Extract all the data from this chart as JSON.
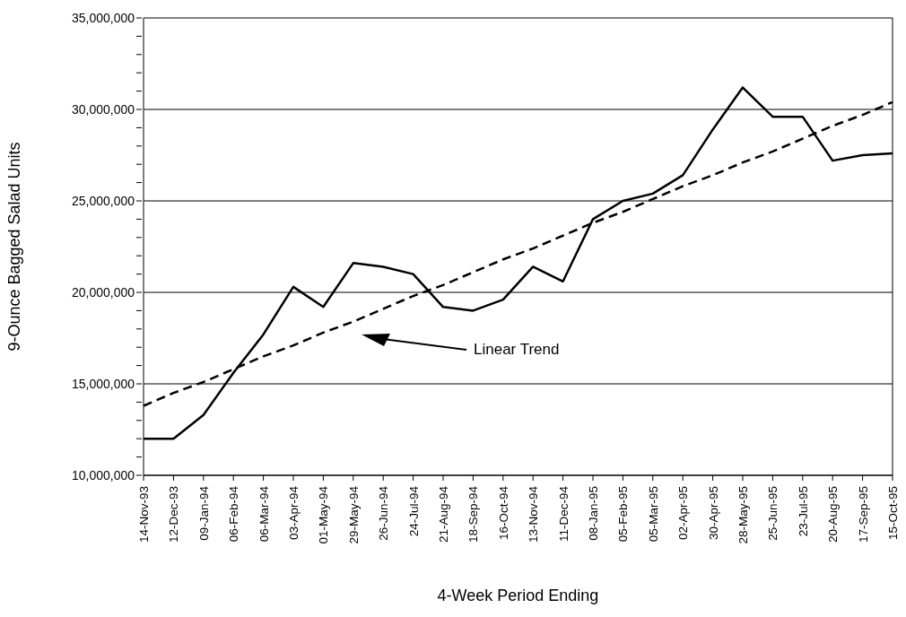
{
  "chart_data": {
    "type": "line",
    "xlabel": "4-Week Period Ending",
    "ylabel": "9-Ounce Bagged Salad Units",
    "categories": [
      "14-Nov-93",
      "12-Dec-93",
      "09-Jan-94",
      "06-Feb-94",
      "06-Mar-94",
      "03-Apr-94",
      "01-May-94",
      "29-May-94",
      "26-Jun-94",
      "24-Jul-94",
      "21-Aug-94",
      "18-Sep-94",
      "16-Oct-94",
      "13-Nov-94",
      "11-Dec-94",
      "08-Jan-95",
      "05-Feb-95",
      "05-Mar-95",
      "02-Apr-95",
      "30-Apr-95",
      "28-May-95",
      "25-Jun-95",
      "23-Jul-95",
      "20-Aug-95",
      "17-Sep-95",
      "15-Oct-95"
    ],
    "series": [
      {
        "color": "#000000",
        "line_style": "solid",
        "values": [
          12000000,
          12000000,
          13300000,
          15600000,
          17700000,
          20300000,
          19200000,
          21600000,
          21400000,
          21000000,
          19200000,
          19000000,
          19600000,
          21400000,
          20600000,
          24000000,
          25000000,
          25400000,
          26400000,
          28900000,
          31200000,
          29600000,
          29600000,
          27200000,
          27500000,
          27600000
        ]
      },
      {
        "type": "line",
        "color": "#000000",
        "line_style": "dashed",
        "values": [
          13800000,
          14500000,
          15100000,
          15800000,
          16500000,
          17100000,
          17800000,
          18400000,
          19100000,
          19800000,
          20400000,
          21100000,
          21800000,
          22400000,
          23100000,
          23800000,
          24400000,
          25100000,
          25800000,
          26400000,
          27100000,
          27700000,
          28400000,
          29100000,
          29700000,
          30400000
        ]
      }
    ],
    "ylim": [
      10000000,
      35000000
    ],
    "yticks": [
      {
        "value": 10000000,
        "label": "10,000,000"
      },
      {
        "value": 11000000,
        "label": null
      },
      {
        "value": 12000000,
        "label": null
      },
      {
        "value": 13000000,
        "label": null
      },
      {
        "value": 14000000,
        "label": null
      },
      {
        "value": 15000000,
        "label": "15,000,000"
      },
      {
        "value": 16000000,
        "label": null
      },
      {
        "value": 17000000,
        "label": null
      },
      {
        "value": 18000000,
        "label": null
      },
      {
        "value": 19000000,
        "label": null
      },
      {
        "value": 20000000,
        "label": "20,000,000"
      },
      {
        "value": 21000000,
        "label": null
      },
      {
        "value": 22000000,
        "label": null
      },
      {
        "value": 23000000,
        "label": null
      },
      {
        "value": 24000000,
        "label": null
      },
      {
        "value": 25000000,
        "label": "25,000,000"
      },
      {
        "value": 26000000,
        "label": null
      },
      {
        "value": 27000000,
        "label": null
      },
      {
        "value": 28000000,
        "label": null
      },
      {
        "value": 29000000,
        "label": null
      },
      {
        "value": 30000000,
        "label": "30,000,000"
      },
      {
        "value": 31000000,
        "label": null
      },
      {
        "value": 32000000,
        "label": null
      },
      {
        "value": 33000000,
        "label": null
      },
      {
        "value": 34000000,
        "label": null
      },
      {
        "value": 35000000,
        "label": "35,000,000"
      }
    ],
    "grid": "y",
    "marker": "none",
    "annotations": [
      "Linear Trend"
    ]
  }
}
